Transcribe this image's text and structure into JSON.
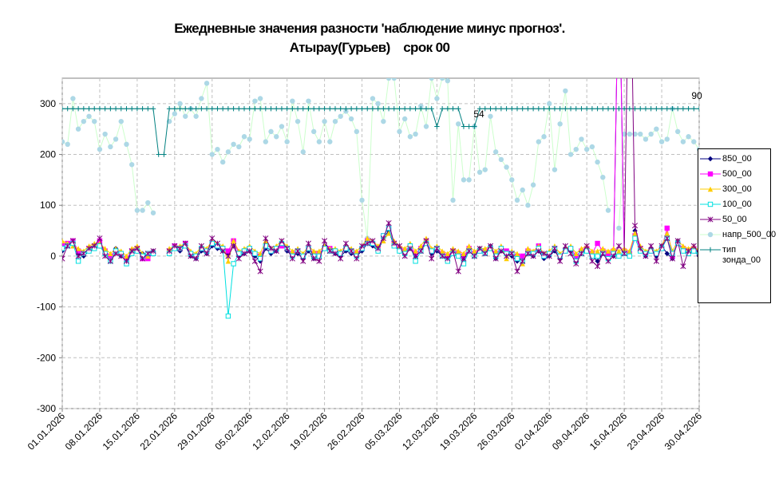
{
  "chart_data": {
    "type": "line",
    "title": "Ежедневные значения разности 'наблюдение минус прогноз'.",
    "subtitle": "Атырау(Гурьев)    срок 00",
    "categories": [
      "01.01.2026",
      null,
      null,
      null,
      null,
      null,
      null,
      "08.01.2026",
      null,
      null,
      null,
      null,
      null,
      null,
      "15.01.2026",
      null,
      null,
      null,
      null,
      null,
      null,
      "22.01.2026",
      null,
      null,
      null,
      null,
      null,
      null,
      "29.01.2026",
      null,
      null,
      null,
      null,
      null,
      null,
      "05.02.2026",
      null,
      null,
      null,
      null,
      null,
      null,
      "12.02.2026",
      null,
      null,
      null,
      null,
      null,
      null,
      "19.02.2026",
      null,
      null,
      null,
      null,
      null,
      null,
      "26.02.2026",
      null,
      null,
      null,
      null,
      null,
      null,
      "05.03.2026",
      null,
      null,
      null,
      null,
      null,
      null,
      "12.03.2026",
      null,
      null,
      null,
      null,
      null,
      null,
      "19.03.2026",
      null,
      null,
      null,
      null,
      null,
      null,
      "26.03.2026",
      null,
      null,
      null,
      null,
      null,
      null,
      "02.04.2026",
      null,
      null,
      null,
      null,
      null,
      null,
      "09.04.2026",
      null,
      null,
      null,
      null,
      null,
      null,
      "16.04.2026",
      null,
      null,
      null,
      null,
      null,
      null,
      "23.04.2026",
      null,
      null,
      null,
      null,
      null,
      null,
      "30.04.2026"
    ],
    "ylim": [
      -300,
      350
    ],
    "yticks": [
      -300,
      -200,
      -100,
      0,
      100,
      200,
      300
    ],
    "grid": true,
    "legend": "right",
    "annotations": [
      "54",
      "90"
    ],
    "series": [
      {
        "name": "850_00",
        "color": "#000080",
        "marker": "diamond",
        "values": [
          10,
          20,
          25,
          5,
          0,
          10,
          15,
          20,
          5,
          -5,
          15,
          0,
          -10,
          5,
          10,
          5,
          0,
          10,
          null,
          null,
          5,
          15,
          10,
          20,
          0,
          -5,
          10,
          5,
          20,
          15,
          10,
          5,
          20,
          0,
          5,
          10,
          0,
          -10,
          15,
          5,
          10,
          25,
          10,
          0,
          5,
          -5,
          10,
          -5,
          0,
          20,
          10,
          5,
          0,
          10,
          5,
          0,
          10,
          25,
          20,
          10,
          35,
          50,
          20,
          10,
          5,
          15,
          0,
          10,
          25,
          5,
          10,
          0,
          -10,
          5,
          0,
          -5,
          10,
          0,
          15,
          5,
          20,
          -5,
          10,
          5,
          0,
          -10,
          -5,
          5,
          0,
          10,
          -5,
          0,
          10,
          -5,
          15,
          10,
          -5,
          5,
          10,
          0,
          -10,
          5,
          0,
          0,
          600,
          5,
          0,
          50,
          10,
          0,
          15,
          0,
          20,
          5,
          -5,
          30,
          10,
          5,
          10,
          0
        ]
      },
      {
        "name": "500_00",
        "color": "#ff00ff",
        "marker": "square",
        "values": [
          20,
          25,
          30,
          10,
          5,
          15,
          20,
          30,
          10,
          0,
          10,
          5,
          -5,
          10,
          15,
          -5,
          -5,
          5,
          null,
          null,
          10,
          20,
          15,
          25,
          5,
          0,
          15,
          10,
          25,
          20,
          15,
          10,
          30,
          5,
          10,
          15,
          5,
          0,
          20,
          10,
          15,
          20,
          15,
          5,
          10,
          0,
          15,
          5,
          5,
          15,
          15,
          10,
          5,
          15,
          10,
          5,
          15,
          30,
          25,
          15,
          40,
          55,
          25,
          15,
          10,
          20,
          5,
          15,
          30,
          10,
          15,
          5,
          0,
          10,
          5,
          0,
          15,
          5,
          10,
          10,
          15,
          5,
          15,
          10,
          5,
          0,
          0,
          10,
          5,
          20,
          0,
          5,
          15,
          0,
          10,
          15,
          0,
          10,
          15,
          5,
          25,
          10,
          5,
          10,
          600,
          10,
          5,
          40,
          15,
          5,
          10,
          5,
          15,
          55,
          0,
          25,
          15,
          10,
          15,
          5
        ]
      },
      {
        "name": "300_00",
        "color": "#ffcc00",
        "marker": "triangle",
        "values": [
          30,
          25,
          20,
          15,
          10,
          20,
          25,
          25,
          15,
          5,
          15,
          10,
          0,
          15,
          20,
          5,
          0,
          10,
          null,
          null,
          15,
          20,
          20,
          25,
          10,
          5,
          20,
          15,
          30,
          25,
          20,
          -10,
          30,
          10,
          15,
          20,
          10,
          5,
          30,
          15,
          20,
          30,
          20,
          10,
          15,
          5,
          20,
          10,
          10,
          20,
          15,
          15,
          10,
          20,
          15,
          10,
          20,
          35,
          30,
          20,
          30,
          45,
          30,
          20,
          15,
          25,
          10,
          20,
          35,
          15,
          20,
          10,
          5,
          15,
          10,
          5,
          20,
          10,
          15,
          15,
          20,
          10,
          20,
          -5,
          10,
          5,
          -15,
          15,
          10,
          20,
          5,
          10,
          20,
          5,
          15,
          20,
          5,
          15,
          20,
          10,
          10,
          15,
          10,
          15,
          10,
          15,
          10,
          45,
          20,
          10,
          15,
          10,
          20,
          45,
          10,
          30,
          20,
          15,
          20,
          10
        ]
      },
      {
        "name": "100_00",
        "color": "#00e0e0",
        "marker": "hollow-square",
        "values": [
          15,
          20,
          25,
          -10,
          5,
          10,
          15,
          20,
          5,
          -10,
          10,
          5,
          -15,
          5,
          10,
          0,
          5,
          5,
          null,
          null,
          5,
          15,
          15,
          20,
          5,
          0,
          15,
          10,
          25,
          20,
          15,
          -118,
          -15,
          5,
          10,
          15,
          5,
          -5,
          20,
          10,
          15,
          25,
          15,
          0,
          10,
          0,
          15,
          0,
          0,
          15,
          10,
          10,
          5,
          15,
          10,
          0,
          15,
          25,
          25,
          10,
          40,
          55,
          20,
          10,
          5,
          20,
          -10,
          10,
          25,
          10,
          15,
          0,
          -10,
          5,
          0,
          -15,
          10,
          0,
          10,
          5,
          15,
          0,
          15,
          5,
          5,
          -5,
          -10,
          5,
          5,
          15,
          0,
          5,
          15,
          0,
          10,
          15,
          -10,
          5,
          10,
          0,
          0,
          5,
          -5,
          5,
          0,
          5,
          0,
          35,
          10,
          5,
          10,
          5,
          15,
          35,
          5,
          25,
          10,
          5,
          10,
          5
        ]
      },
      {
        "name": "50_00",
        "color": "#800080",
        "marker": "star",
        "values": [
          -5,
          20,
          30,
          0,
          5,
          15,
          20,
          35,
          0,
          -10,
          5,
          0,
          -10,
          10,
          15,
          -5,
          5,
          10,
          null,
          null,
          10,
          20,
          15,
          25,
          0,
          -5,
          20,
          5,
          35,
          25,
          10,
          0,
          20,
          -5,
          5,
          10,
          -10,
          -30,
          35,
          15,
          10,
          30,
          15,
          -5,
          10,
          -10,
          25,
          -5,
          -10,
          30,
          10,
          5,
          -5,
          25,
          10,
          -5,
          20,
          25,
          30,
          15,
          35,
          65,
          25,
          20,
          0,
          15,
          0,
          10,
          30,
          -5,
          15,
          0,
          -5,
          10,
          -30,
          -5,
          10,
          0,
          15,
          5,
          20,
          -5,
          10,
          0,
          5,
          -30,
          -10,
          5,
          0,
          10,
          5,
          0,
          15,
          -10,
          20,
          5,
          -15,
          5,
          20,
          -10,
          -20,
          5,
          -10,
          0,
          20,
          5,
          700,
          60,
          15,
          0,
          20,
          -10,
          20,
          35,
          -5,
          30,
          -20,
          10,
          20,
          5
        ]
      },
      {
        "name": "напр_500_00",
        "color": "#add8e6",
        "line_color": "#ccffcc",
        "marker": "circle",
        "values": [
          225,
          220,
          310,
          250,
          265,
          275,
          265,
          210,
          240,
          215,
          230,
          265,
          220,
          180,
          90,
          90,
          105,
          85,
          null,
          null,
          265,
          280,
          300,
          275,
          290,
          275,
          310,
          340,
          200,
          210,
          185,
          205,
          220,
          215,
          235,
          230,
          305,
          310,
          225,
          245,
          235,
          255,
          225,
          305,
          265,
          205,
          305,
          245,
          225,
          265,
          225,
          265,
          275,
          285,
          270,
          245,
          110,
          35,
          310,
          300,
          265,
          350,
          350,
          245,
          270,
          235,
          240,
          295,
          255,
          350,
          310,
          350,
          345,
          110,
          260,
          150,
          150,
          255,
          165,
          170,
          275,
          205,
          190,
          175,
          150,
          110,
          130,
          100,
          140,
          225,
          235,
          300,
          170,
          260,
          325,
          200,
          210,
          230,
          210,
          215,
          185,
          155,
          90,
          null,
          55,
          240,
          240,
          240,
          240,
          230,
          240,
          250,
          225,
          230,
          290,
          245,
          225,
          235,
          225,
          210
        ]
      },
      {
        "name": "тип зонда_00",
        "color": "#008080",
        "marker": "plus",
        "values": [
          290,
          290,
          290,
          290,
          290,
          290,
          290,
          290,
          290,
          290,
          290,
          290,
          290,
          290,
          290,
          290,
          290,
          290,
          200,
          200,
          290,
          290,
          290,
          290,
          290,
          290,
          290,
          290,
          290,
          290,
          290,
          290,
          290,
          290,
          290,
          290,
          290,
          290,
          290,
          290,
          290,
          290,
          290,
          290,
          290,
          290,
          290,
          290,
          290,
          290,
          290,
          290,
          290,
          290,
          290,
          290,
          290,
          290,
          290,
          290,
          290,
          290,
          290,
          290,
          290,
          290,
          290,
          290,
          290,
          290,
          255,
          290,
          290,
          290,
          290,
          255,
          255,
          255,
          290,
          290,
          290,
          290,
          290,
          290,
          290,
          290,
          290,
          290,
          290,
          290,
          290,
          290,
          290,
          290,
          290,
          290,
          290,
          290,
          290,
          290,
          290,
          290,
          290,
          290,
          290,
          290,
          290,
          290,
          290,
          290,
          290,
          290,
          290,
          290,
          290,
          290,
          290,
          290,
          290,
          290
        ]
      }
    ]
  }
}
